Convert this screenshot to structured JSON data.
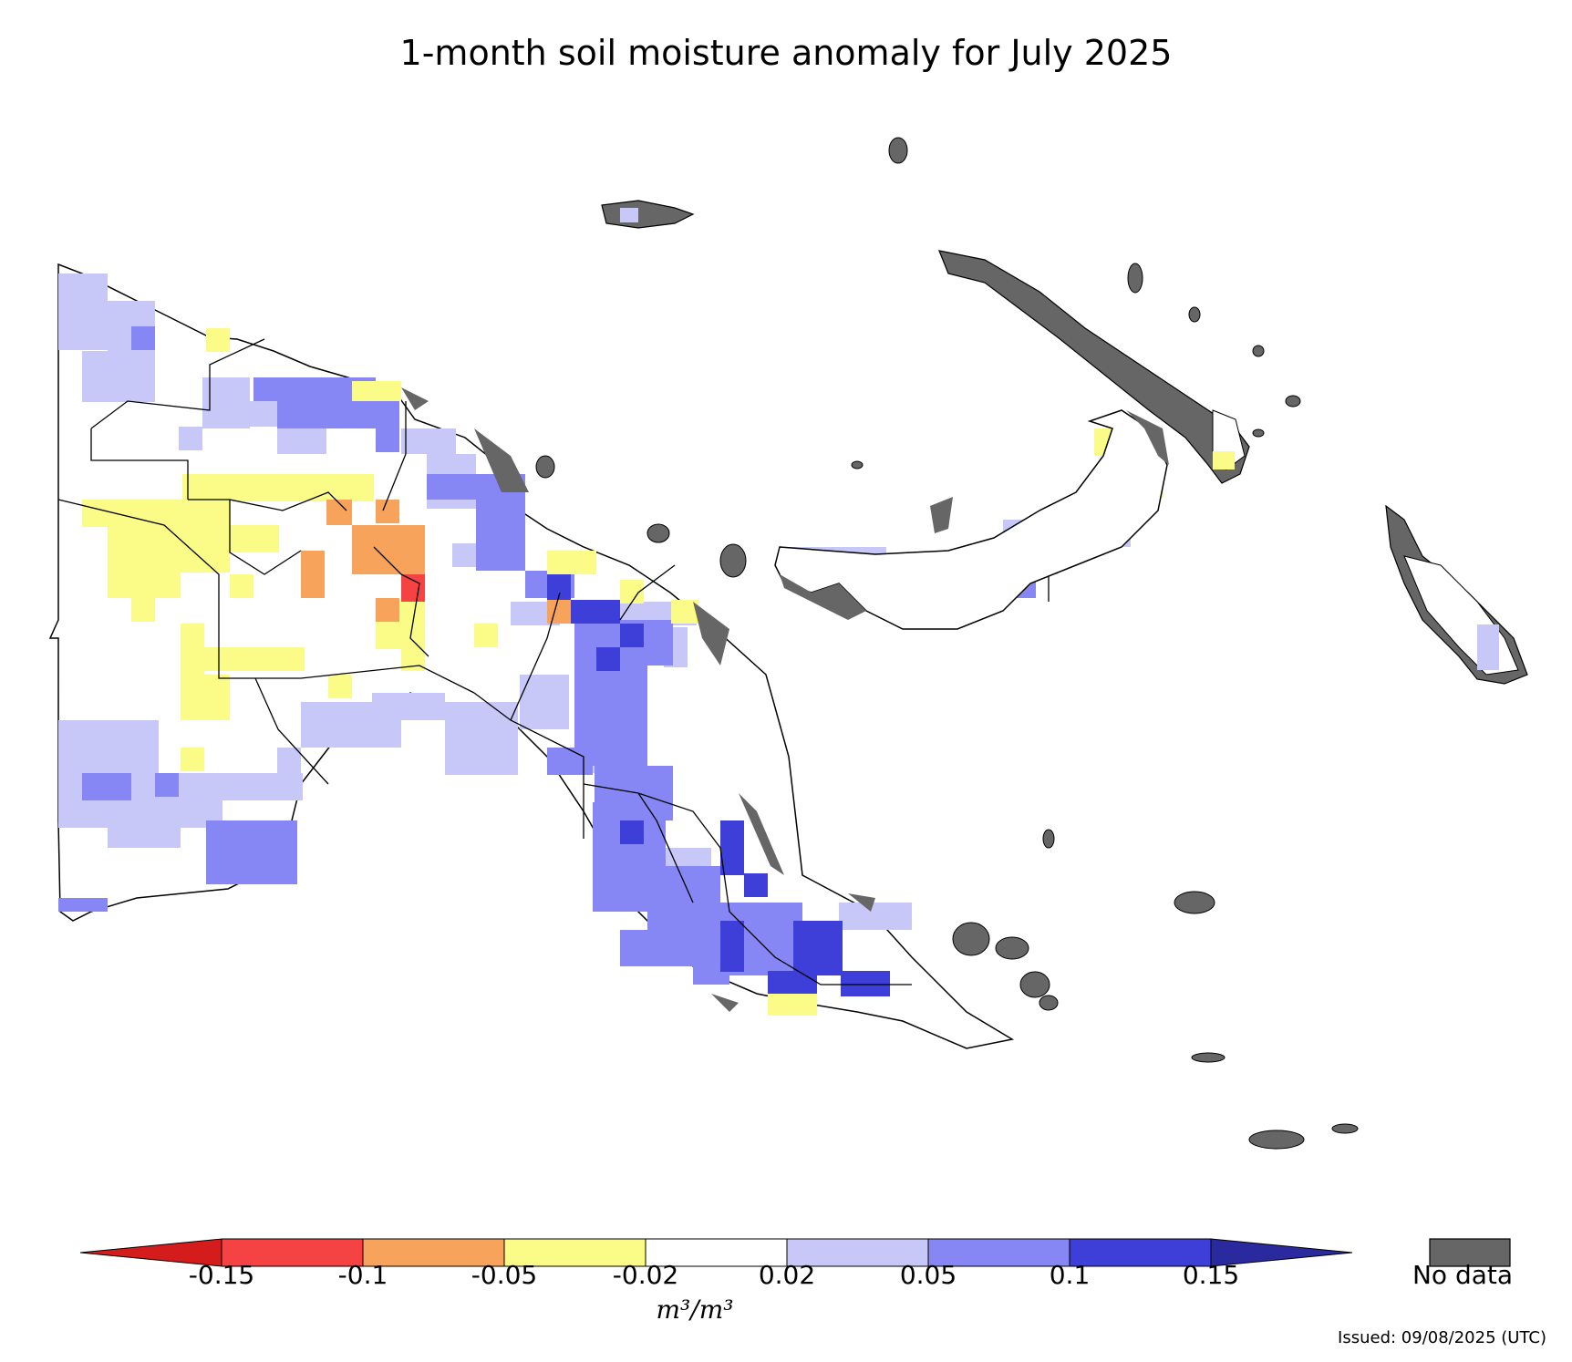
{
  "title": "1-month soil moisture anomaly for July 2025",
  "colorbar": {
    "ticks": [
      "-0.15",
      "-0.1",
      "-0.05",
      "-0.02",
      "0.02",
      "0.05",
      "0.1",
      "0.15"
    ],
    "colors": [
      "#d41c1c",
      "#f54343",
      "#f7a35c",
      "#fbfb88",
      "#ffffff",
      "#c8c8f8",
      "#8686f5",
      "#3e3ed8",
      "#2a2a9e"
    ],
    "unit": "m³/m³"
  },
  "nodata": {
    "label": "No data",
    "color": "#666666"
  },
  "issued": "Issued: 09/08/2025 (UTC)"
}
